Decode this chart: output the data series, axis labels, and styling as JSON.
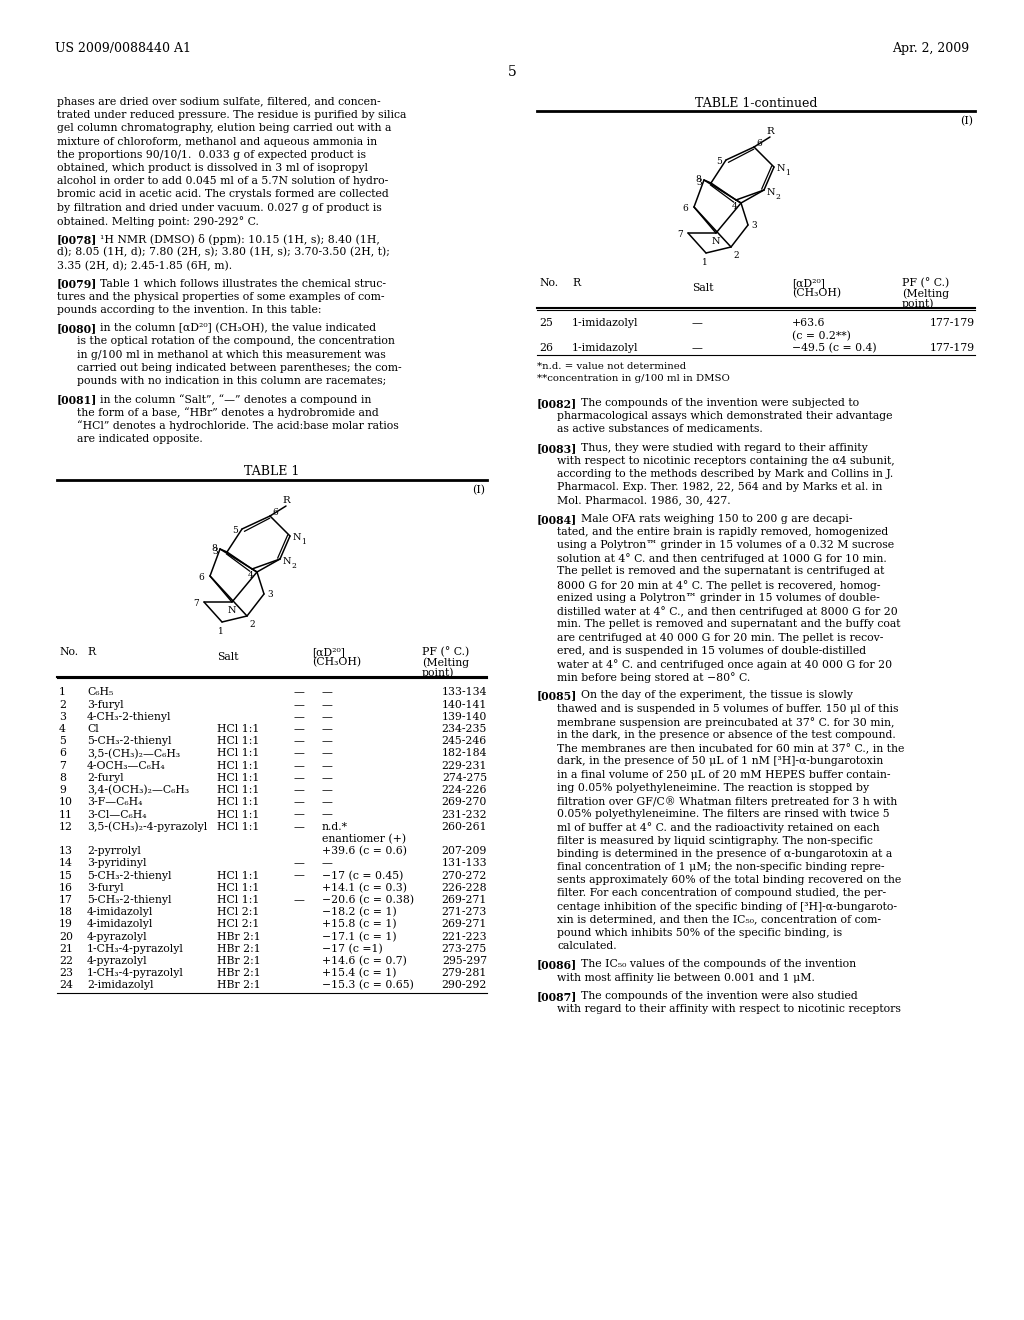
{
  "page_header_left": "US 2009/0088440 A1",
  "page_header_right": "Apr. 2, 2009",
  "page_number": "5",
  "left_top_lines": [
    "phases are dried over sodium sulfate, filtered, and concen-",
    "trated under reduced pressure. The residue is purified by silica",
    "gel column chromatography, elution being carried out with a",
    "mixture of chloroform, methanol and aqueous ammonia in",
    "the proportions 90/10/1.  0.033 g of expected product is",
    "obtained, which product is dissolved in 3 ml of isopropyl",
    "alcohol in order to add 0.045 ml of a 5.7N solution of hydro-",
    "bromic acid in acetic acid. The crystals formed are collected",
    "by filtration and dried under vacuum. 0.027 g of product is",
    "obtained. Melting point: 290-292° C."
  ],
  "para_0078_lines": [
    "¹H NMR (DMSO) δ (ppm): 10.15 (1H, s); 8.40 (1H,",
    "d); 8.05 (1H, d); 7.80 (2H, s); 3.80 (1H, s); 3.70-3.50 (2H, t);",
    "3.35 (2H, d); 2.45-1.85 (6H, m)."
  ],
  "para_0079_lines": [
    "Table 1 which follows illustrates the chemical struc-",
    "tures and the physical properties of some examples of com-",
    "pounds according to the invention. In this table:"
  ],
  "para_0080_lines": [
    "in the column [αD²⁰] (CH₃OH), the value indicated",
    "is the optical rotation of the compound, the concentration",
    "in g/100 ml in methanol at which this measurement was",
    "carried out being indicated between parentheses; the com-",
    "pounds with no indication in this column are racemates;"
  ],
  "para_0081_lines": [
    "in the column “Salt”, “—” denotes a compound in",
    "the form of a base, “HBr” denotes a hydrobromide and",
    "“HCl” denotes a hydrochloride. The acid:base molar ratios",
    "are indicated opposite."
  ],
  "table1_rows": [
    [
      "1",
      "C₆H₅",
      "",
      "—",
      "—",
      "133-134"
    ],
    [
      "2",
      "3-furyl",
      "",
      "—",
      "—",
      "140-141"
    ],
    [
      "3",
      "4-CH₃-2-thienyl",
      "",
      "—",
      "—",
      "139-140"
    ],
    [
      "4",
      "Cl",
      "HCl 1:1",
      "—",
      "—",
      "234-235"
    ],
    [
      "5",
      "5-CH₃-2-thienyl",
      "HCl 1:1",
      "—",
      "—",
      "245-246"
    ],
    [
      "6",
      "3,5-(CH₃)₂—C₆H₃",
      "HCl 1:1",
      "—",
      "—",
      "182-184"
    ],
    [
      "7",
      "4-OCH₃—C₆H₄",
      "HCl 1:1",
      "—",
      "—",
      "229-231"
    ],
    [
      "8",
      "2-furyl",
      "HCl 1:1",
      "—",
      "—",
      "274-275"
    ],
    [
      "9",
      "3,4-(OCH₃)₂—C₆H₃",
      "HCl 1:1",
      "—",
      "—",
      "224-226"
    ],
    [
      "10",
      "3-F—C₆H₄",
      "HCl 1:1",
      "—",
      "—",
      "269-270"
    ],
    [
      "11",
      "3-Cl—C₆H₄",
      "HCl 1:1",
      "—",
      "—",
      "231-232"
    ],
    [
      "12",
      "3,5-(CH₃)₂-4-pyrazolyl",
      "HCl 1:1",
      "—",
      "n.d.*",
      "260-261"
    ],
    [
      "",
      "",
      "",
      "",
      "enantiomer (+)",
      ""
    ],
    [
      "13",
      "2-pyrrolyl",
      "",
      "",
      "+39.6 (c = 0.6)",
      "207-209"
    ],
    [
      "14",
      "3-pyridinyl",
      "",
      "—",
      "—",
      "131-133"
    ],
    [
      "15",
      "5-CH₃-2-thienyl",
      "HCl 1:1",
      "—",
      "−17 (c = 0.45)",
      "270-272"
    ],
    [
      "16",
      "3-furyl",
      "HCl 1:1",
      "",
      "+14.1 (c = 0.3)",
      "226-228"
    ],
    [
      "17",
      "5-CH₃-2-thienyl",
      "HCl 1:1",
      "—",
      "−20.6 (c = 0.38)",
      "269-271"
    ],
    [
      "18",
      "4-imidazolyl",
      "HCl 2:1",
      "",
      "−18.2 (c = 1)",
      "271-273"
    ],
    [
      "19",
      "4-imidazolyl",
      "HCl 2:1",
      "",
      "+15.8 (c = 1)",
      "269-271"
    ],
    [
      "20",
      "4-pyrazolyl",
      "HBr 2:1",
      "",
      "−17.1 (c = 1)",
      "221-223"
    ],
    [
      "21",
      "1-CH₃-4-pyrazolyl",
      "HBr 2:1",
      "",
      "−17 (c =1)",
      "273-275"
    ],
    [
      "22",
      "4-pyrazolyl",
      "HBr 2:1",
      "",
      "+14.6 (c = 0.7)",
      "295-297"
    ],
    [
      "23",
      "1-CH₃-4-pyrazolyl",
      "HBr 2:1",
      "",
      "+15.4 (c = 1)",
      "279-281"
    ],
    [
      "24",
      "2-imidazolyl",
      "HBr 2:1",
      "",
      "−15.3 (c = 0.65)",
      "290-292"
    ]
  ],
  "table1_cont_rows": [
    [
      "25",
      "1-imidazolyl",
      "—",
      "+63.6",
      "177-179"
    ],
    [
      "",
      "",
      "",
      "(c = 0.2**)",
      ""
    ],
    [
      "26",
      "1-imidazolyl",
      "—",
      "−49.5 (c = 0.4)",
      "177-179"
    ]
  ],
  "footnotes": [
    "*n.d. = value not determined",
    "**concentration in g/100 ml in DMSO"
  ],
  "right_paragraphs": [
    {
      "tag": "[0082]",
      "lines": [
        "The compounds of the invention were subjected to",
        "pharmacological assays which demonstrated their advantage",
        "as active substances of medicaments."
      ]
    },
    {
      "tag": "[0083]",
      "lines": [
        "Thus, they were studied with regard to their affinity",
        "with respect to nicotinic receptors containing the α4 subunit,",
        "according to the methods described by Mark and Collins in J.",
        "Pharmacol. Exp. Ther. 1982, 22, 564 and by Marks et al. in",
        "Mol. Pharmacol. 1986, 30, 427."
      ]
    },
    {
      "tag": "[0084]",
      "lines": [
        "Male OFA rats weighing 150 to 200 g are decapi-",
        "tated, and the entire brain is rapidly removed, homogenized",
        "using a Polytron™ grinder in 15 volumes of a 0.32 M sucrose",
        "solution at 4° C. and then centrifuged at 1000 G for 10 min.",
        "The pellet is removed and the supernatant is centrifuged at",
        "8000 G for 20 min at 4° C. The pellet is recovered, homog-",
        "enized using a Polytron™ grinder in 15 volumes of double-",
        "distilled water at 4° C., and then centrifuged at 8000 G for 20",
        "min. The pellet is removed and supernatant and the buffy coat",
        "are centrifuged at 40 000 G for 20 min. The pellet is recov-",
        "ered, and is suspended in 15 volumes of double-distilled",
        "water at 4° C. and centrifuged once again at 40 000 G for 20",
        "min before being stored at −80° C."
      ]
    },
    {
      "tag": "[0085]",
      "lines": [
        "On the day of the experiment, the tissue is slowly",
        "thawed and is suspended in 5 volumes of buffer. 150 μl of this",
        "membrane suspension are preincubated at 37° C. for 30 min,",
        "in the dark, in the presence or absence of the test compound.",
        "The membranes are then incubated for 60 min at 37° C., in the",
        "dark, in the presence of 50 μL of 1 nM [³H]-α-bungarotoxin",
        "in a final volume of 250 μL of 20 mM HEPES buffer contain-",
        "ing 0.05% polyethyleneimine. The reaction is stopped by",
        "filtration over GF/C® Whatman filters pretreated for 3 h with",
        "0.05% polyethyleneimine. The filters are rinsed with twice 5",
        "ml of buffer at 4° C. and the radioactivity retained on each",
        "filter is measured by liquid scintigraphy. The non-specific",
        "binding is determined in the presence of α-bungarotoxin at a",
        "final concentration of 1 μM; the non-specific binding repre-",
        "sents approximately 60% of the total binding recovered on the",
        "filter. For each concentration of compound studied, the per-",
        "centage inhibition of the specific binding of [³H]-α-bungaroto-",
        "xin is determined, and then the IC₅₀, concentration of com-",
        "pound which inhibits 50% of the specific binding, is",
        "calculated."
      ]
    },
    {
      "tag": "[0086]",
      "lines": [
        "The IC₅₀ values of the compounds of the invention",
        "with most affinity lie between 0.001 and 1 μM."
      ]
    },
    {
      "tag": "[0087]",
      "lines": [
        "The compounds of the invention were also studied",
        "with regard to their affinity with respect to nicotinic receptors"
      ]
    }
  ]
}
